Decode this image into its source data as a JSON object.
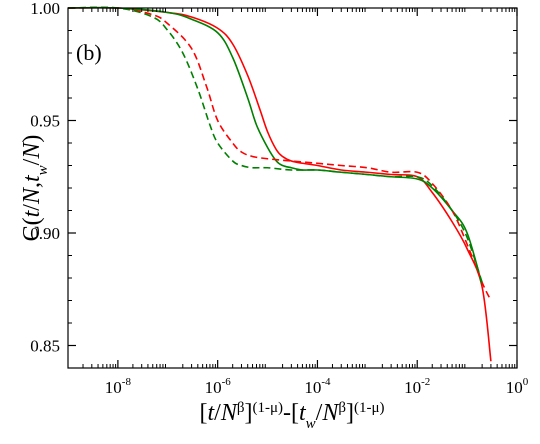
{
  "chart_data": {
    "type": "line",
    "panel_label": "(b)",
    "xscale": "log",
    "xlim": [
      1e-09,
      1
    ],
    "ylim": [
      0.84,
      1.0
    ],
    "x_tick_labels": [
      {
        "base": "10",
        "exp": "-8"
      },
      {
        "base": "10",
        "exp": "-6"
      },
      {
        "base": "10",
        "exp": "-4"
      },
      {
        "base": "10",
        "exp": "-2"
      },
      {
        "base": "10",
        "exp": "0"
      }
    ],
    "x_tick_values": [
      1e-08,
      1e-06,
      0.0001,
      0.01,
      1
    ],
    "y_ticks": [
      0.85,
      0.9,
      0.95,
      1.0
    ],
    "y_tick_labels": [
      "0.85",
      "0.90",
      "0.95",
      "1.00"
    ],
    "ylabel": "C(t/N,t_w/N)",
    "xlabel": "[t/N^β]^(1-μ)-[t_w/N^β]^(1-μ)",
    "grid": false,
    "legend": false,
    "colors": {
      "red": "#ff0000",
      "green": "#008000"
    },
    "series": [
      {
        "color": "red",
        "style": "solid",
        "x": [
          1e-09,
          1e-08,
          1e-07,
          3e-07,
          1e-06,
          2e-06,
          4e-06,
          7e-06,
          1e-05,
          1.5e-05,
          2e-05,
          3e-05,
          5e-05,
          0.0001,
          0.0003,
          0.001,
          0.003,
          0.01,
          0.02,
          0.05,
          0.1,
          0.2,
          0.3
        ],
        "y": [
          1.0,
          1.0,
          0.998,
          0.996,
          0.991,
          0.984,
          0.97,
          0.955,
          0.945,
          0.937,
          0.934,
          0.932,
          0.931,
          0.93,
          0.928,
          0.927,
          0.926,
          0.925,
          0.918,
          0.905,
          0.893,
          0.876,
          0.843
        ]
      },
      {
        "color": "green",
        "style": "solid",
        "x": [
          1e-09,
          1e-08,
          1e-07,
          3e-07,
          1e-06,
          2e-06,
          4e-06,
          6e-06,
          1e-05,
          1.5e-05,
          2e-05,
          3e-05,
          5e-05,
          0.0001,
          0.0003,
          0.001,
          0.003,
          0.01,
          0.02,
          0.05,
          0.1,
          0.2
        ],
        "y": [
          1.0,
          1.0,
          0.998,
          0.995,
          0.989,
          0.978,
          0.96,
          0.948,
          0.938,
          0.932,
          0.93,
          0.929,
          0.928,
          0.928,
          0.927,
          0.926,
          0.925,
          0.924,
          0.92,
          0.91,
          0.9,
          0.877
        ]
      },
      {
        "color": "red",
        "style": "dashed",
        "x": [
          1e-09,
          1e-08,
          5e-08,
          1e-07,
          3e-07,
          6e-07,
          1e-06,
          2e-06,
          3e-06,
          5e-06,
          1e-05,
          3e-05,
          0.0001,
          0.0003,
          0.001,
          0.003,
          0.01,
          0.02,
          0.05,
          0.1,
          0.2,
          0.3
        ],
        "y": [
          1.0,
          1.0,
          0.997,
          0.993,
          0.982,
          0.965,
          0.95,
          0.94,
          0.936,
          0.934,
          0.933,
          0.932,
          0.931,
          0.93,
          0.929,
          0.927,
          0.927,
          0.922,
          0.91,
          0.895,
          0.878,
          0.87
        ]
      },
      {
        "color": "green",
        "style": "dashed",
        "x": [
          1e-09,
          1e-08,
          5e-08,
          1e-07,
          2e-07,
          4e-07,
          7e-07,
          1e-06,
          2e-06,
          3e-06,
          5e-06,
          1e-05,
          3e-05,
          0.0001,
          0.0003,
          0.001,
          0.003,
          0.01,
          0.02,
          0.05,
          0.1,
          0.2
        ],
        "y": [
          1.0,
          1.0,
          0.996,
          0.99,
          0.98,
          0.964,
          0.948,
          0.94,
          0.932,
          0.93,
          0.929,
          0.929,
          0.928,
          0.928,
          0.927,
          0.926,
          0.925,
          0.925,
          0.921,
          0.91,
          0.898,
          0.878
        ]
      }
    ]
  }
}
